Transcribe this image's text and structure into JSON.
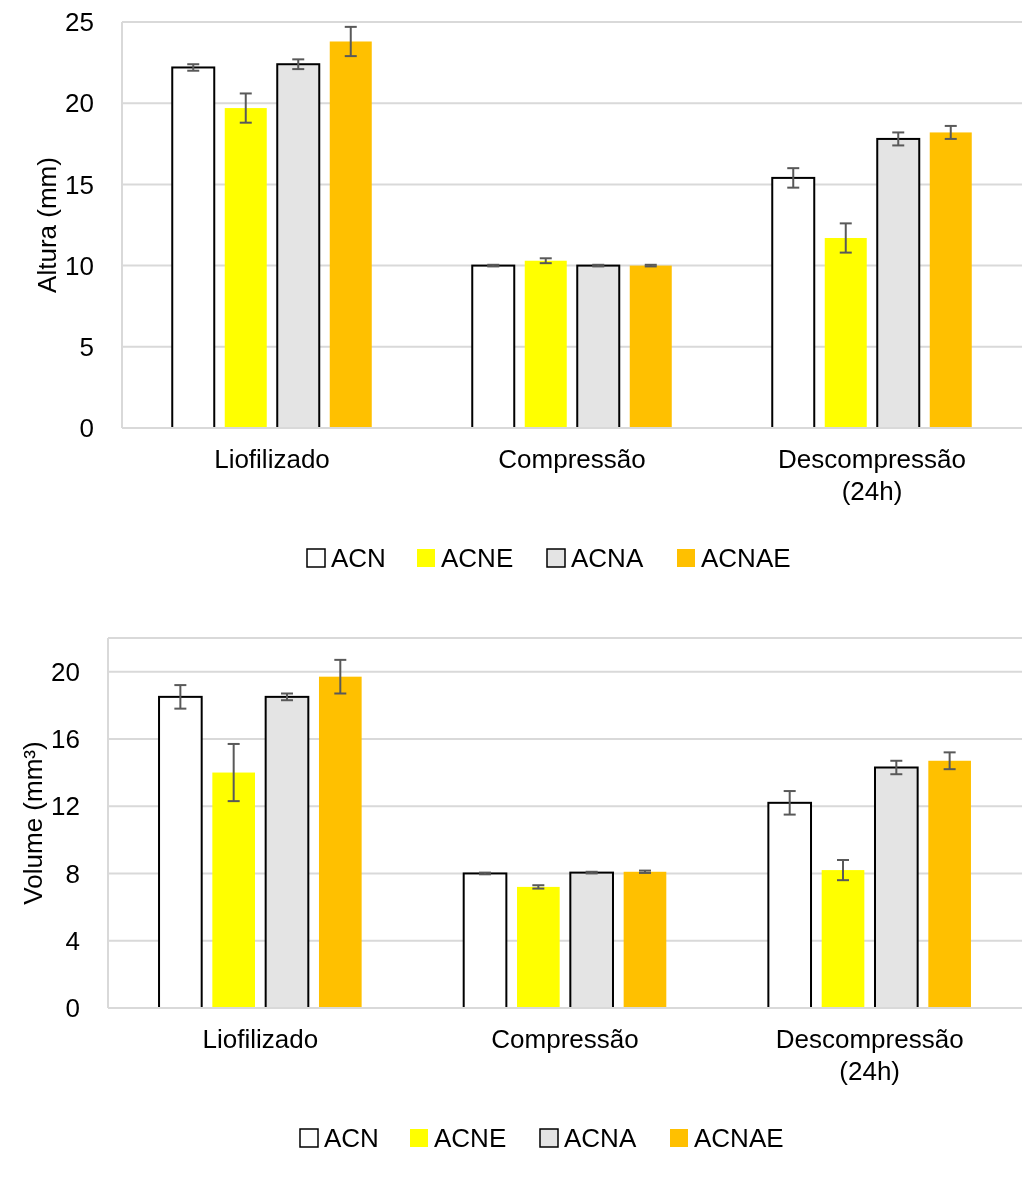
{
  "chart_data": [
    {
      "type": "bar",
      "ylabel": "Altura (mm)",
      "categories": [
        "Liofilizado",
        "Compressão",
        "Descompressão (24h)"
      ],
      "ylim": [
        0,
        25
      ],
      "yticks": [
        0,
        5,
        10,
        15,
        20,
        25
      ],
      "grid": "y",
      "legend": "bottom",
      "series": [
        {
          "name": "ACN",
          "color": "#ffffff",
          "values": [
            22.2,
            10.0,
            15.4
          ],
          "errors": [
            0.2,
            0.05,
            0.6
          ]
        },
        {
          "name": "ACNE",
          "color": "#ffff00",
          "values": [
            19.7,
            10.3,
            11.7
          ],
          "errors": [
            0.9,
            0.15,
            0.9
          ]
        },
        {
          "name": "ACNA",
          "color": "#e4e4e4",
          "values": [
            22.4,
            10.0,
            17.8
          ],
          "errors": [
            0.3,
            0.05,
            0.4
          ]
        },
        {
          "name": "ACNAE",
          "color": "#ffc000",
          "values": [
            23.8,
            10.0,
            18.2
          ],
          "errors": [
            0.9,
            0.05,
            0.4
          ]
        }
      ]
    },
    {
      "type": "bar",
      "ylabel": "Volume (mm³)",
      "categories": [
        "Liofilizado",
        "Compressão",
        "Descompressão (24h)"
      ],
      "ylim": [
        0,
        22
      ],
      "yticks": [
        0,
        4,
        8,
        12,
        16,
        20
      ],
      "grid": "y",
      "legend": "bottom",
      "series": [
        {
          "name": "ACN",
          "color": "#ffffff",
          "values": [
            18.5,
            8.0,
            12.2
          ],
          "errors": [
            0.7,
            0.05,
            0.7
          ]
        },
        {
          "name": "ACNE",
          "color": "#ffff00",
          "values": [
            14.0,
            7.2,
            8.2
          ],
          "errors": [
            1.7,
            0.1,
            0.6
          ]
        },
        {
          "name": "ACNA",
          "color": "#e4e4e4",
          "values": [
            18.5,
            8.05,
            14.3
          ],
          "errors": [
            0.2,
            0.05,
            0.4
          ]
        },
        {
          "name": "ACNAE",
          "color": "#ffc000",
          "values": [
            19.7,
            8.1,
            14.7
          ],
          "errors": [
            1.0,
            0.07,
            0.5
          ]
        }
      ]
    }
  ]
}
